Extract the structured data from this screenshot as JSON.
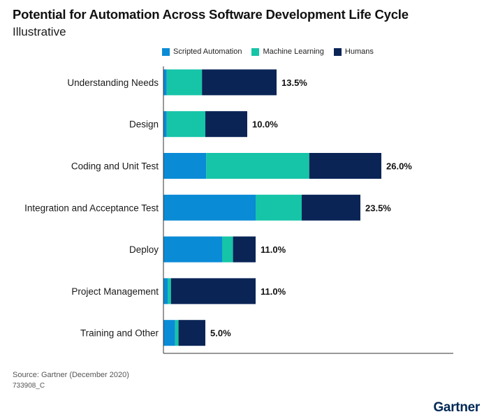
{
  "header": {
    "title": "Potential for Automation Across Software Development Life Cycle",
    "subtitle": "Illustrative"
  },
  "legend": {
    "items": [
      {
        "label": "Scripted Automation",
        "color": "#0a8bd6"
      },
      {
        "label": "Machine Learning",
        "color": "#16c4a7"
      },
      {
        "label": "Humans",
        "color": "#0a2456"
      }
    ]
  },
  "chart_data": {
    "type": "bar",
    "orientation": "horizontal",
    "stacked": true,
    "categories": [
      "Understanding Needs",
      "Design",
      "Coding and Unit Test",
      "Integration and Acceptance Test",
      "Deploy",
      "Project Management",
      "Training and Other"
    ],
    "series": [
      {
        "name": "Scripted Automation",
        "color": "#0a8bd6",
        "values": [
          0.4,
          0.4,
          5.1,
          11.0,
          7.0,
          0.5,
          1.4
        ]
      },
      {
        "name": "Machine Learning",
        "color": "#16c4a7",
        "values": [
          4.2,
          4.6,
          12.3,
          5.5,
          1.3,
          0.4,
          0.4
        ]
      },
      {
        "name": "Humans",
        "color": "#0a2456",
        "values": [
          8.9,
          5.0,
          8.6,
          7.0,
          2.7,
          10.1,
          3.2
        ]
      }
    ],
    "totals": [
      13.5,
      10.0,
      26.0,
      23.5,
      11.0,
      11.0,
      5.0
    ],
    "total_labels": [
      "13.5%",
      "10.0%",
      "26.0%",
      "23.5%",
      "11.0%",
      "11.0%",
      "5.0%"
    ],
    "xlim": [
      0,
      26.2
    ],
    "grid": false,
    "legend_position": "top"
  },
  "footer": {
    "source": "Source: Gartner (December 2020)",
    "code": "733908_C",
    "logo": "Gartner"
  }
}
